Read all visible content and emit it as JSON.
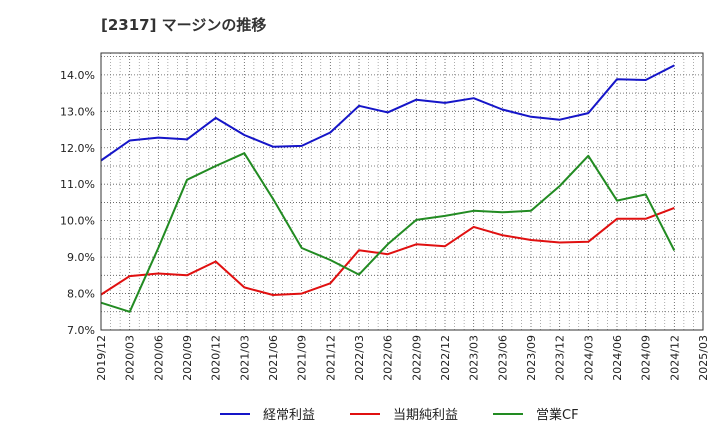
{
  "chart_data": {
    "type": "line",
    "title": "[2317]  マージンの推移",
    "xlabel": "",
    "ylabel": "",
    "categories": [
      "2019/12",
      "2020/03",
      "2020/06",
      "2020/09",
      "2020/12",
      "2021/03",
      "2021/06",
      "2021/09",
      "2021/12",
      "2022/03",
      "2022/06",
      "2022/09",
      "2022/12",
      "2023/03",
      "2023/06",
      "2023/09",
      "2023/12",
      "2024/03",
      "2024/06",
      "2024/09",
      "2024/12",
      "2025/03"
    ],
    "yticks": [
      "7.0%",
      "8.0%",
      "9.0%",
      "10.0%",
      "11.0%",
      "12.0%",
      "13.0%",
      "14.0%"
    ],
    "ylim": [
      7.0,
      14.6
    ],
    "grid": true,
    "legend_position": "bottom",
    "series": [
      {
        "name": "経常利益",
        "color": "#1515c8",
        "values": [
          11.65,
          12.2,
          12.28,
          12.23,
          12.82,
          12.35,
          12.03,
          12.05,
          12.42,
          13.15,
          12.97,
          13.32,
          13.23,
          13.36,
          13.05,
          12.85,
          12.77,
          12.95,
          13.88,
          13.86,
          14.26,
          null
        ]
      },
      {
        "name": "当期純利益",
        "color": "#e01010",
        "values": [
          7.97,
          8.48,
          8.55,
          8.5,
          8.88,
          8.17,
          7.96,
          8.0,
          8.28,
          9.19,
          9.08,
          9.35,
          9.3,
          9.83,
          9.6,
          9.47,
          9.4,
          9.42,
          10.05,
          10.05,
          10.35,
          null
        ]
      },
      {
        "name": "営業CF",
        "color": "#228b22",
        "values": [
          7.75,
          7.5,
          9.25,
          11.12,
          11.5,
          11.85,
          10.6,
          9.25,
          8.92,
          8.52,
          9.35,
          10.02,
          10.13,
          10.27,
          10.23,
          10.27,
          10.95,
          11.78,
          10.55,
          10.72,
          9.18,
          null
        ]
      }
    ]
  }
}
